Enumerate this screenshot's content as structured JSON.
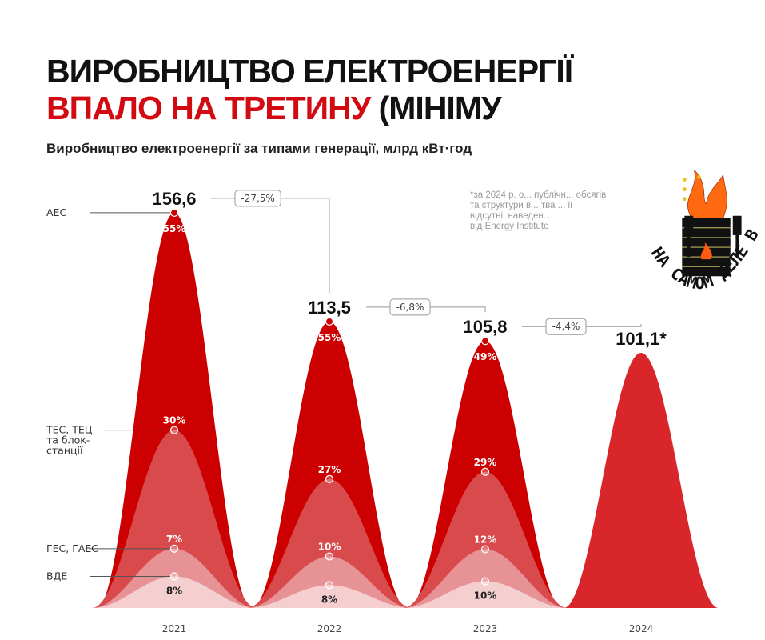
{
  "title_line1": "ВИРОБНИЦТВО ЕЛЕКТРОЕНЕРГІЇ",
  "title_line2_red": "ВПАЛО НА ТРЕТИНУ",
  "title_line2_black": "(МІНІМУ",
  "subtitle": "Виробництво електроенергії за типами генерації, млрд кВт·год",
  "footnote": [
    "*за 2024 р. о... публічн... обсягів",
    "та структури в... тва ... ії",
    "відсутні, наведен...",
    "від Energy Institute"
  ],
  "watermark_text": "НА САМОМ ДЕЛЕ В ЛУГАНСКЕ",
  "colors": {
    "aes": "#cc0000",
    "tes": "#d84a4c",
    "ges": "#e79294",
    "vde": "#f5cfd0",
    "total_2024": "#d9262b"
  },
  "chart_data": {
    "type": "area",
    "categories": [
      "2021",
      "2022",
      "2023",
      "2024"
    ],
    "totals": [
      156.6,
      113.5,
      105.8,
      101.1
    ],
    "total_labels": [
      "156,6",
      "113,5",
      "105,8",
      "101,1*"
    ],
    "changes": [
      "-27,5%",
      "-6,8%",
      "-4,4%"
    ],
    "series": [
      {
        "name": "АЕС",
        "values": [
          55,
          55,
          49,
          null
        ],
        "labels": [
          "55%",
          "55%",
          "49%",
          ""
        ]
      },
      {
        "name": "ТЕС, ТЕЦ та блок-станції",
        "values": [
          30,
          27,
          29,
          null
        ],
        "labels": [
          "30%",
          "27%",
          "29%",
          ""
        ]
      },
      {
        "name": "ГЕС, ГАЕС",
        "values": [
          7,
          10,
          12,
          null
        ],
        "labels": [
          "7%",
          "10%",
          "12%",
          ""
        ]
      },
      {
        "name": "ВДЕ",
        "values": [
          8,
          8,
          10,
          null
        ],
        "labels": [
          "8%",
          "8%",
          "10%",
          ""
        ]
      }
    ],
    "legend_labels": [
      "АЕС",
      [
        "ТЕС, ТЕЦ",
        "та блок-",
        "станції"
      ],
      "ГЕС, ГАЕС",
      "ВДЕ"
    ]
  }
}
